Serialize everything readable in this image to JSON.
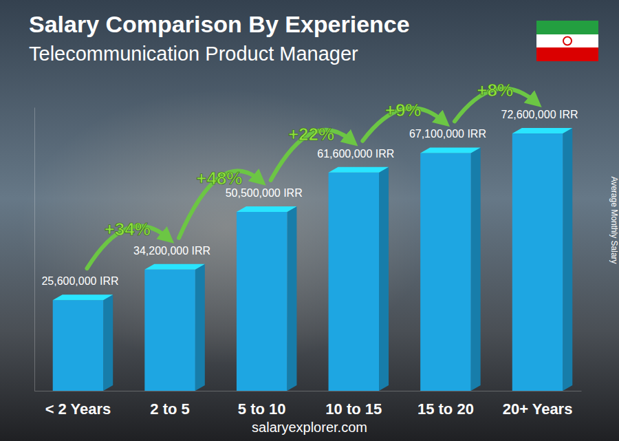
{
  "chart_data": {
    "type": "bar",
    "title": "Salary Comparison By Experience",
    "subtitle": "Telecommunication Product Manager",
    "ylabel": "Average Monthly Salary",
    "source": "salaryexplorer.com",
    "categories": [
      "< 2 Years",
      "2 to 5",
      "5 to 10",
      "10 to 15",
      "15 to 20",
      "20+ Years"
    ],
    "values": [
      25600000,
      34200000,
      50500000,
      61600000,
      67100000,
      72600000
    ],
    "value_labels": [
      "25,600,000 IRR",
      "34,200,000 IRR",
      "50,500,000 IRR",
      "61,600,000 IRR",
      "67,100,000 IRR",
      "72,600,000 IRR"
    ],
    "data_labels": true,
    "annotations": [
      "+34%",
      "+48%",
      "+22%",
      "+9%",
      "+8%"
    ],
    "color": "#1ea6e2",
    "ylim": [
      0,
      80000000
    ],
    "yticks": [],
    "tick_labels": "x",
    "grid": false
  }
}
